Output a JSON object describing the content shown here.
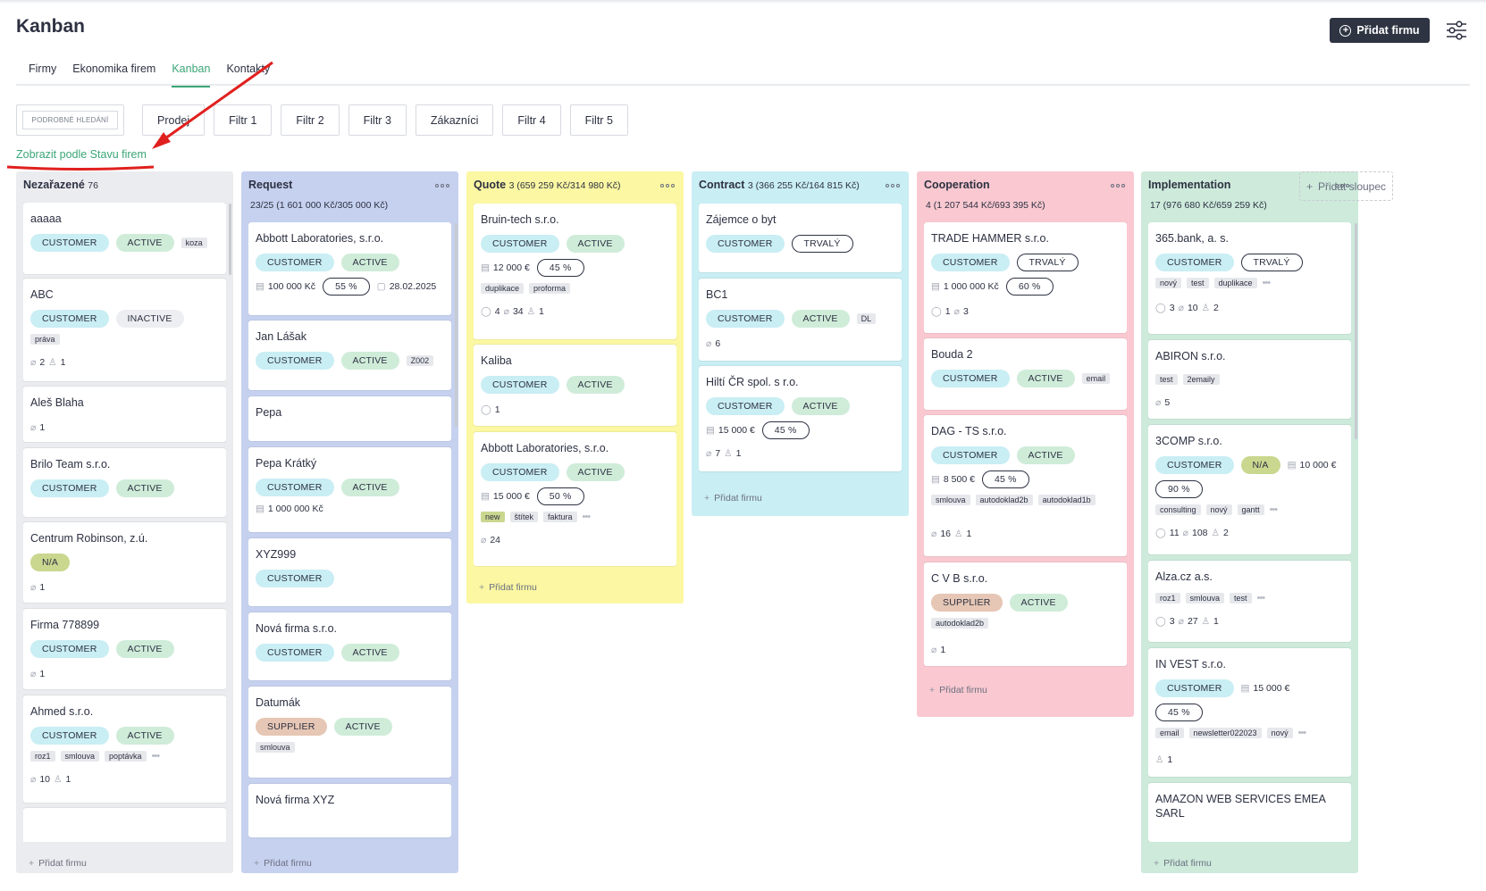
{
  "page": {
    "title": "Kanban",
    "add_button": "Přidat firmu",
    "status_link": "Zobrazit podle Stavu firem"
  },
  "tabs": [
    "Firmy",
    "Ekonomika firem",
    "Kanban",
    "Kontakty"
  ],
  "filters": {
    "search": "PODROBNÉ HLEDÁNÍ",
    "items": [
      "Prodej",
      "Filtr 1",
      "Filtr 2",
      "Filtr 3",
      "Zákazníci",
      "Filtr 4",
      "Filtr 5"
    ]
  },
  "add_column": "Přidat sloupec",
  "add_firm": "Přidat firmu",
  "colors": {
    "accent": "#3aa676",
    "col_gray": "#ebecef",
    "col_blue": "#c6d1ef",
    "col_yellow": "#fbf7a2",
    "col_cyan": "#c9eef4",
    "col_pink": "#f9c8d0",
    "col_green": "#cdeadb"
  },
  "columns": {
    "c0": {
      "name": "Nezařazené",
      "count": "76",
      "sub": "",
      "cards": [
        {
          "name": "aaaaa",
          "chips": [
            "CUSTOMER",
            "ACTIVE"
          ],
          "tags": [
            "koza"
          ]
        },
        {
          "name": "ABC",
          "chips": [
            "CUSTOMER",
            "INACTIVE"
          ],
          "tags": [
            "práva"
          ],
          "meta": [
            "2",
            "1"
          ]
        },
        {
          "name": "Aleš Blaha",
          "meta": [
            "1"
          ]
        },
        {
          "name": "Brilo Team s.r.o.",
          "chips": [
            "CUSTOMER",
            "ACTIVE"
          ]
        },
        {
          "name": "Centrum Robinson, z.ú.",
          "chips": [
            "N/A"
          ],
          "meta": [
            "1"
          ]
        },
        {
          "name": "Firma 778899",
          "chips": [
            "CUSTOMER",
            "ACTIVE"
          ],
          "meta": [
            "1"
          ]
        },
        {
          "name": "Ahmed s.r.o.",
          "chips": [
            "CUSTOMER",
            "ACTIVE"
          ],
          "tags": [
            "roz1",
            "smlouva",
            "poptávka"
          ],
          "meta": [
            "10",
            "1"
          ]
        }
      ]
    },
    "c1": {
      "name": "Request",
      "count": "",
      "sub": "23/25 (1 601 000 Kč/305 000 Kč)",
      "cards": [
        {
          "name": "Abbott Laboratories, s.r.o.",
          "chips": [
            "CUSTOMER",
            "ACTIVE"
          ],
          "value": "100 000 Kč",
          "pct": "55 %",
          "date": "28.02.2025"
        },
        {
          "name": "Jan Lášak",
          "chips": [
            "CUSTOMER",
            "ACTIVE"
          ],
          "tags": [
            "Z002"
          ]
        },
        {
          "name": "Pepa"
        },
        {
          "name": "Pepa Krátký",
          "chips": [
            "CUSTOMER",
            "ACTIVE"
          ],
          "value": "1 000 000 Kč"
        },
        {
          "name": "XYZ999",
          "chips": [
            "CUSTOMER"
          ]
        },
        {
          "name": "Nová firma s.r.o.",
          "chips": [
            "CUSTOMER",
            "ACTIVE"
          ]
        },
        {
          "name": "Datumák",
          "chips": [
            "SUPPLIER",
            "ACTIVE"
          ],
          "tags": [
            "smlouva"
          ]
        },
        {
          "name": "Nová firma XYZ"
        }
      ]
    },
    "c2": {
      "name": "Quote",
      "count": "3 (659 259 Kč/314 980 Kč)",
      "sub": "",
      "cards": [
        {
          "name": "Bruin-tech s.r.o.",
          "chips": [
            "CUSTOMER",
            "ACTIVE"
          ],
          "value": "12 000 €",
          "pct": "45 %",
          "tags": [
            "duplikace",
            "proforma"
          ],
          "meta": [
            "4",
            "34",
            "1"
          ]
        },
        {
          "name": "Kaliba",
          "chips": [
            "CUSTOMER",
            "ACTIVE"
          ],
          "meta": [
            "1"
          ]
        },
        {
          "name": "Abbott Laboratories, s.r.o.",
          "chips": [
            "CUSTOMER",
            "ACTIVE"
          ],
          "value": "15 000 €",
          "pct": "50 %",
          "tags": [
            "new",
            "štítek",
            "faktura"
          ],
          "meta": [
            "24"
          ]
        }
      ]
    },
    "c3": {
      "name": "Contract",
      "count": "3 (366 255 Kč/164 815 Kč)",
      "sub": "",
      "cards": [
        {
          "name": "Zájemce o byt",
          "chips": [
            "CUSTOMER",
            "TRVALÝ"
          ]
        },
        {
          "name": "BC1",
          "chips": [
            "CUSTOMER",
            "ACTIVE"
          ],
          "tags": [
            "DL"
          ],
          "meta": [
            "6"
          ]
        },
        {
          "name": "Hiltí ČR spol. s r.o.",
          "chips": [
            "CUSTOMER",
            "ACTIVE"
          ],
          "value": "15 000 €",
          "pct": "45 %",
          "meta": [
            "7",
            "1"
          ]
        }
      ]
    },
    "c4": {
      "name": "Cooperation",
      "count": "",
      "sub": "4 (1 207 544 Kč/693 395 Kč)",
      "cards": [
        {
          "name": "TRADE HAMMER s.r.o.",
          "chips": [
            "CUSTOMER",
            "TRVALÝ"
          ],
          "value": "1 000 000 Kč",
          "pct": "60 %",
          "meta": [
            "1",
            "3"
          ]
        },
        {
          "name": "Bouda 2",
          "chips": [
            "CUSTOMER",
            "ACTIVE"
          ],
          "tags": [
            "email"
          ]
        },
        {
          "name": "DAG - TS s.r.o.",
          "chips": [
            "CUSTOMER",
            "ACTIVE"
          ],
          "value": "8 500 €",
          "pct": "45 %",
          "tags": [
            "smlouva",
            "autodoklad2b",
            "autodoklad1b"
          ],
          "meta": [
            "16",
            "1"
          ]
        },
        {
          "name": "C V B s.r.o.",
          "chips": [
            "SUPPLIER",
            "ACTIVE"
          ],
          "tags": [
            "autodoklad2b"
          ],
          "meta": [
            "1"
          ]
        }
      ]
    },
    "c5": {
      "name": "Implementation",
      "count": "",
      "sub": "17 (976 680 Kč/659 259 Kč)",
      "cards": [
        {
          "name": "365.bank, a. s.",
          "chips": [
            "CUSTOMER",
            "TRVALÝ"
          ],
          "tags": [
            "nový",
            "test",
            "duplikace"
          ],
          "meta": [
            "3",
            "10",
            "2"
          ]
        },
        {
          "name": "ABIRON s.r.o.",
          "tags": [
            "test",
            "2emaily"
          ],
          "meta": [
            "5"
          ]
        },
        {
          "name": "3COMP s.r.o.",
          "chips": [
            "CUSTOMER",
            "N/A"
          ],
          "value": "10 000 €",
          "pct": "90 %",
          "tags": [
            "consulting",
            "nový",
            "gantt"
          ],
          "meta": [
            "11",
            "108",
            "2"
          ]
        },
        {
          "name": "Alza.cz a.s.",
          "tags": [
            "roz1",
            "smlouva",
            "test"
          ],
          "meta": [
            "3",
            "27",
            "1"
          ]
        },
        {
          "name": "IN VEST s.r.o.",
          "chips": [
            "CUSTOMER"
          ],
          "value": "15 000 €",
          "pct": "45 %",
          "tags": [
            "email",
            "newsletter022023",
            "nový"
          ],
          "meta": [
            "1"
          ]
        },
        {
          "name": "AMAZON WEB SERVICES EMEA SARL"
        }
      ]
    }
  }
}
